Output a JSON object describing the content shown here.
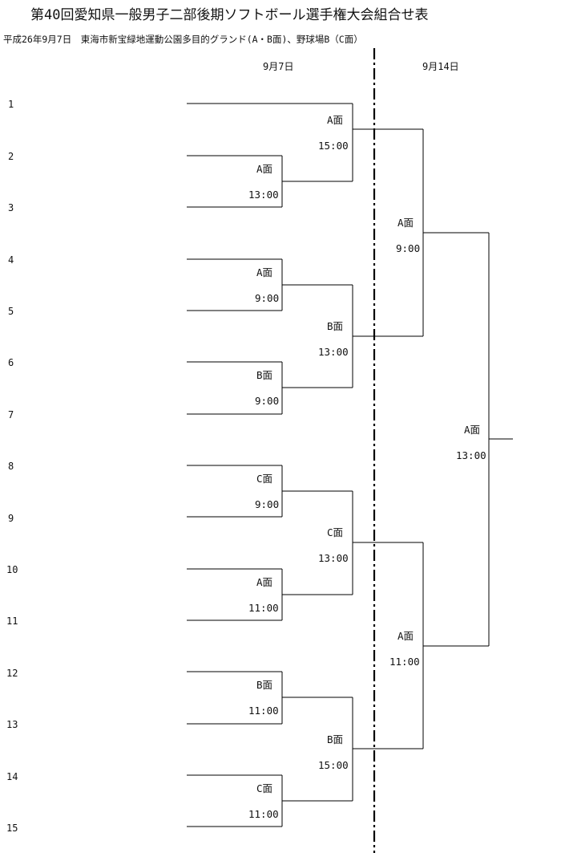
{
  "title": "第40回愛知県一般男子二部後期ソフトボール選手権大会組合せ表",
  "subtitle": "平成26年9月7日　東海市新宝緑地運動公園多目的グランド(A・B面)、野球場B（C面）",
  "dates": {
    "day1": "9月7日",
    "day2": "9月14日"
  },
  "seeds": [
    "1",
    "2",
    "3",
    "4",
    "5",
    "6",
    "7",
    "8",
    "9",
    "10",
    "11",
    "12",
    "13",
    "14",
    "15"
  ],
  "matches": [
    {
      "id": "r1-2v3",
      "court": "A面",
      "time": "13:00"
    },
    {
      "id": "r1-4v5",
      "court": "A面",
      "time": "9:00"
    },
    {
      "id": "r1-6v7",
      "court": "B面",
      "time": "9:00"
    },
    {
      "id": "r1-8v9",
      "court": "C面",
      "time": "9:00"
    },
    {
      "id": "r1-10v11",
      "court": "A面",
      "time": "11:00"
    },
    {
      "id": "r1-12v13",
      "court": "B面",
      "time": "11:00"
    },
    {
      "id": "r1-14v15",
      "court": "C面",
      "time": "11:00"
    },
    {
      "id": "r2-top",
      "court": "A面",
      "time": "15:00"
    },
    {
      "id": "r2-b",
      "court": "B面",
      "time": "13:00"
    },
    {
      "id": "r2-c",
      "court": "C面",
      "time": "13:00"
    },
    {
      "id": "r2-bot",
      "court": "B面",
      "time": "15:00"
    },
    {
      "id": "sf-top",
      "court": "A面",
      "time": "9:00"
    },
    {
      "id": "sf-bot",
      "court": "A面",
      "time": "11:00"
    },
    {
      "id": "final",
      "court": "A面",
      "time": "13:00"
    }
  ]
}
